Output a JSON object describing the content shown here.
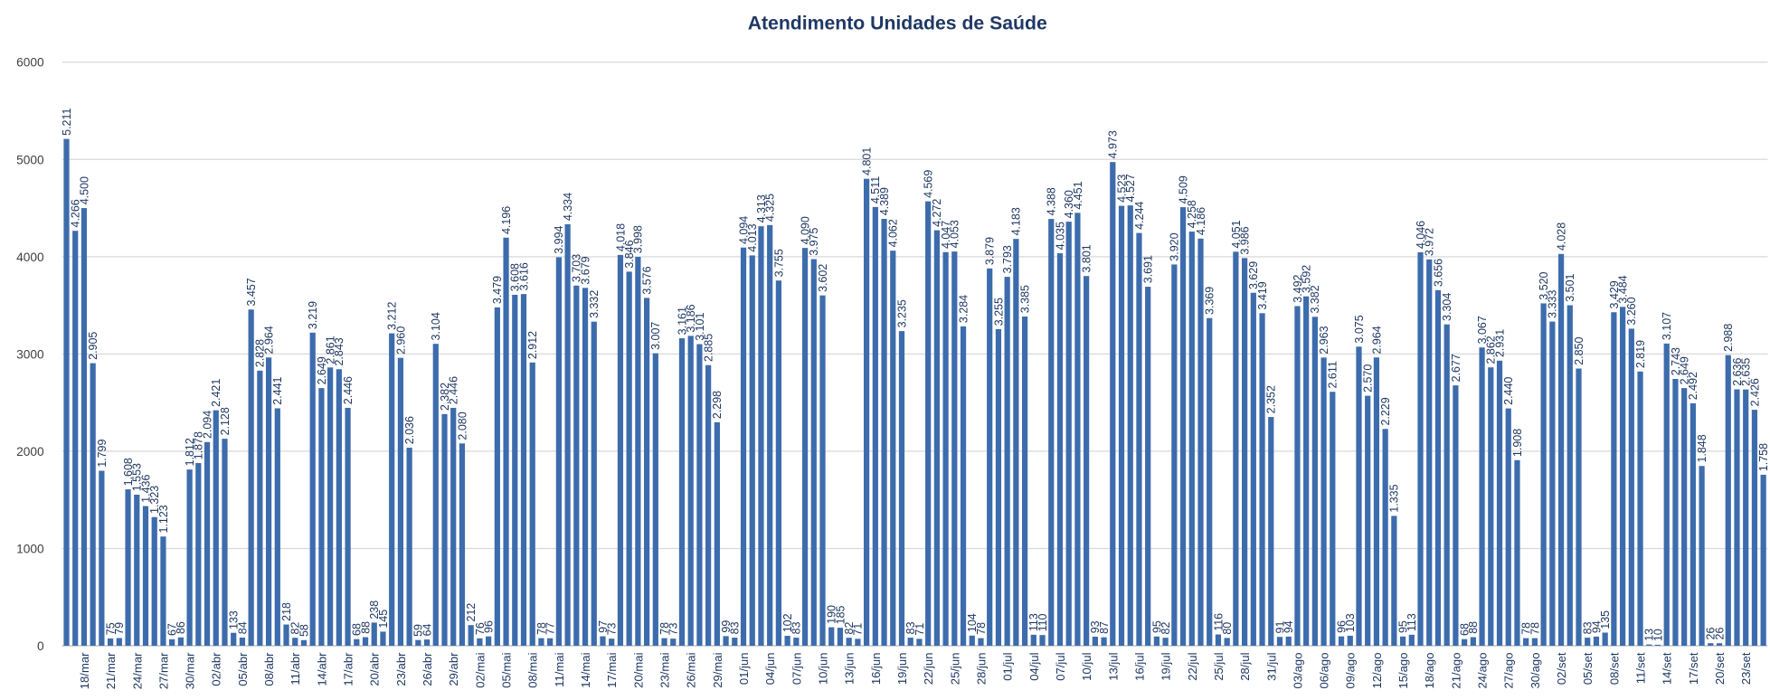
{
  "chart_data": {
    "type": "bar",
    "title": "Atendimento Unidades de Saúde",
    "color": "#3d6cad",
    "grid": true,
    "ylim": [
      0,
      6000
    ],
    "yticks": [
      0,
      1000,
      2000,
      3000,
      4000,
      5000,
      6000
    ],
    "categories": [
      null,
      null,
      "18/mar",
      null,
      null,
      "21/mar",
      null,
      null,
      "24/mar",
      null,
      null,
      "27/mar",
      null,
      null,
      "30/mar",
      null,
      null,
      "02/abr",
      null,
      null,
      "05/abr",
      null,
      null,
      "08/abr",
      null,
      null,
      "11/abr",
      null,
      null,
      "14/abr",
      null,
      null,
      "17/abr",
      null,
      null,
      "20/abr",
      null,
      null,
      "23/abr",
      null,
      null,
      "26/abr",
      null,
      null,
      "29/abr",
      null,
      null,
      "02/mai",
      null,
      null,
      "05/mai",
      null,
      null,
      "08/mai",
      null,
      null,
      "11/mai",
      null,
      null,
      "14/mai",
      null,
      null,
      "17/mai",
      null,
      null,
      "20/mai",
      null,
      null,
      "23/mai",
      null,
      null,
      "26/mai",
      null,
      null,
      "29/mai",
      null,
      null,
      "01/jun",
      null,
      null,
      "04/jun",
      null,
      null,
      "07/jun",
      null,
      null,
      "10/jun",
      null,
      null,
      "13/jun",
      null,
      null,
      "16/jun",
      null,
      null,
      "19/jun",
      null,
      null,
      "22/jun",
      null,
      null,
      "25/jun",
      null,
      null,
      "28/jun",
      null,
      null,
      "01/jul",
      null,
      null,
      "04/jul",
      null,
      null,
      "07/jul",
      null,
      null,
      "10/jul",
      null,
      null,
      "13/jul",
      null,
      null,
      "16/jul",
      null,
      null,
      "19/jul",
      null,
      null,
      "22/jul",
      null,
      null,
      "25/jul",
      null,
      null,
      "28/jul",
      null,
      null,
      "31/jul",
      null,
      null,
      "03/ago",
      null,
      null,
      "06/ago",
      null,
      null,
      "09/ago",
      null,
      null,
      "12/ago",
      null,
      null,
      "15/ago",
      null,
      null,
      "18/ago",
      null,
      null,
      "21/ago",
      null,
      null,
      "24/ago",
      null,
      null,
      "27/ago",
      null,
      null,
      "30/ago",
      null,
      null,
      "02/set",
      null,
      null,
      "05/set",
      null,
      null,
      "08/set",
      null,
      null,
      "11/set",
      null,
      null,
      "14/set",
      null,
      null,
      "17/set",
      null,
      null,
      "20/set",
      null,
      null,
      "23/set",
      null,
      null
    ],
    "values": [
      5211,
      4266,
      4500,
      2905,
      1799,
      75,
      79,
      1608,
      1553,
      1436,
      1323,
      1123,
      67,
      86,
      1812,
      1878,
      2094,
      2421,
      2128,
      133,
      84,
      3457,
      2828,
      2964,
      2441,
      218,
      82,
      58,
      3219,
      2649,
      2861,
      2843,
      2446,
      68,
      88,
      238,
      145,
      3212,
      2960,
      2036,
      59,
      64,
      3104,
      2382,
      2446,
      2080,
      212,
      76,
      96,
      3479,
      4196,
      3608,
      3616,
      2912,
      78,
      77,
      3994,
      4334,
      3703,
      3679,
      3332,
      97,
      73,
      4018,
      3846,
      3998,
      3576,
      3007,
      78,
      73,
      3161,
      3186,
      3101,
      2885,
      2298,
      99,
      83,
      4094,
      4013,
      4313,
      4325,
      3755,
      102,
      83,
      4090,
      3975,
      3602,
      190,
      185,
      82,
      71,
      4801,
      4511,
      4389,
      4062,
      3235,
      83,
      71,
      4569,
      4272,
      4047,
      4053,
      3284,
      104,
      78,
      3879,
      3255,
      3793,
      4183,
      3385,
      113,
      110,
      4388,
      4035,
      4360,
      4451,
      3801,
      93,
      87,
      4973,
      4523,
      4527,
      4244,
      3691,
      95,
      82,
      3920,
      4509,
      4258,
      4186,
      3369,
      116,
      80,
      4051,
      3986,
      3629,
      3419,
      2352,
      91,
      94,
      3492,
      3592,
      3382,
      2963,
      2611,
      96,
      103,
      3075,
      2570,
      2964,
      2229,
      1335,
      95,
      113,
      4046,
      3972,
      3656,
      3304,
      2677,
      68,
      88,
      3067,
      2862,
      2931,
      2440,
      1908,
      78,
      78,
      3520,
      3333,
      4028,
      3501,
      2850,
      83,
      94,
      135,
      3429,
      3484,
      3260,
      2819,
      13,
      10,
      3107,
      2743,
      2649,
      2492,
      1848,
      26,
      26,
      2988,
      2636,
      2635,
      2426,
      1758
    ],
    "value_labels": [
      "5.211",
      "4.266",
      "4.500",
      "2.905",
      "1.799",
      "75",
      "79",
      "1.608",
      "1.553",
      "1.436",
      "1.323",
      "1.123",
      "67",
      "86",
      "1.812",
      "1.878",
      "2.094",
      "2.421",
      "2.128",
      "133",
      "84",
      "3.457",
      "2.828",
      "2.964",
      "2.441",
      "218",
      "82",
      "58",
      "3.219",
      "2.649",
      "2.861",
      "2.843",
      "2.446",
      "68",
      "88",
      "238",
      "145",
      "3.212",
      "2.960",
      "2.036",
      "59",
      "64",
      "3.104",
      "2.382",
      "2.446",
      "2.080",
      "212",
      "76",
      "96",
      "3.479",
      "4.196",
      "3.608",
      "3.616",
      "2.912",
      "78",
      "77",
      "3.994",
      "4.334",
      "3.703",
      "3.679",
      "3.332",
      "97",
      "73",
      "4.018",
      "3.846",
      "3.998",
      "3.576",
      "3.007",
      "78",
      "73",
      "3.161",
      "3.186",
      "3.101",
      "2.885",
      "2.298",
      "99",
      "83",
      "4.094",
      "4.013",
      "4.313",
      "4.325",
      "3.755",
      "102",
      "83",
      "4.090",
      "3.975",
      "3.602",
      "190",
      "185",
      "82",
      "71",
      "4.801",
      "4.511",
      "4.389",
      "4.062",
      "3.235",
      "83",
      "71",
      "4.569",
      "4.272",
      "4.047",
      "4.053",
      "3.284",
      "104",
      "78",
      "3.879",
      "3.255",
      "3.793",
      "4.183",
      "3.385",
      "113",
      "110",
      "4.388",
      "4.035",
      "4.360",
      "4.451",
      "3.801",
      "93",
      "87",
      "4.973",
      "4.523",
      "4.527",
      "4.244",
      "3.691",
      "95",
      "82",
      "3.920",
      "4.509",
      "4.258",
      "4.186",
      "3.369",
      "116",
      "80",
      "4.051",
      "3.986",
      "3.629",
      "3.419",
      "2.352",
      "91",
      "94",
      "3.492",
      "3.592",
      "3.382",
      "2.963",
      "2.611",
      "96",
      "103",
      "3.075",
      "2.570",
      "2.964",
      "2.229",
      "1.335",
      "95",
      "113",
      "4.046",
      "3.972",
      "3.656",
      "3.304",
      "2.677",
      "68",
      "88",
      "3.067",
      "2.862",
      "2.931",
      "2.440",
      "1.908",
      "78",
      "78",
      "3.520",
      "3.333",
      "4.028",
      "3.501",
      "2.850",
      "83",
      "94",
      "135",
      "3.429",
      "3.484",
      "3.260",
      "2.819",
      "13",
      "10",
      "3.107",
      "2.743",
      "2.649",
      "2.492",
      "1.848",
      "26",
      "26",
      "2.988",
      "2.636",
      "2.635",
      "2.426",
      "1.758"
    ]
  }
}
